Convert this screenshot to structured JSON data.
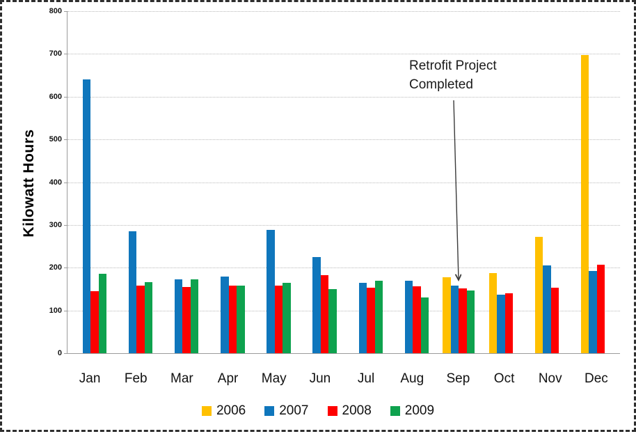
{
  "chart_data": {
    "type": "bar",
    "title": "",
    "xlabel": "",
    "ylabel": "Kilowatt Hours",
    "ylim": [
      0,
      800
    ],
    "ytick_step": 100,
    "yticks": [
      0,
      100,
      200,
      300,
      400,
      500,
      600,
      700,
      800
    ],
    "grid": true,
    "legend_position": "bottom",
    "categories": [
      "Jan",
      "Feb",
      "Mar",
      "Apr",
      "May",
      "Jun",
      "Jul",
      "Aug",
      "Sep",
      "Oct",
      "Nov",
      "Dec"
    ],
    "series": [
      {
        "name": "2006",
        "color": "#FFC000",
        "values": [
          null,
          null,
          null,
          null,
          null,
          null,
          null,
          null,
          178,
          188,
          272,
          697
        ]
      },
      {
        "name": "2007",
        "color": "#0F76BC",
        "values": [
          640,
          285,
          172,
          180,
          288,
          225,
          165,
          170,
          158,
          137,
          205,
          192
        ]
      },
      {
        "name": "2008",
        "color": "#FE0000",
        "values": [
          145,
          158,
          155,
          158,
          158,
          182,
          153,
          156,
          151,
          140,
          153,
          207
        ]
      },
      {
        "name": "2009",
        "color": "#0EA24E",
        "values": [
          186,
          166,
          172,
          158,
          165,
          150,
          169,
          131,
          147,
          null,
          null,
          null
        ]
      }
    ],
    "annotation": {
      "line1": "Retrofit Project",
      "line2": "Completed",
      "target_category": "Sep",
      "target_series": "2007"
    }
  }
}
